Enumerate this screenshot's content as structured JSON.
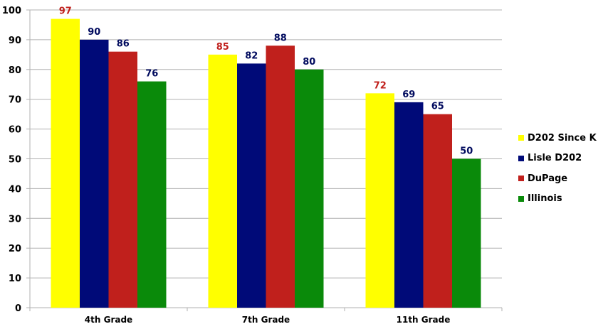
{
  "chart_data": {
    "type": "bar",
    "categories": [
      "4th Grade",
      "7th Grade",
      "11th Grade"
    ],
    "series": [
      {
        "name": "D202 Since K",
        "color": "#ffff00",
        "label_color": "#c0201c",
        "values": [
          97,
          85,
          72
        ]
      },
      {
        "name": "Lisle D202",
        "color": "#000a78",
        "label_color": "#000a5e",
        "values": [
          90,
          82,
          69
        ]
      },
      {
        "name": "DuPage",
        "color": "#c0201c",
        "label_color": "#000a5e",
        "values": [
          86,
          88,
          65
        ]
      },
      {
        "name": "Illinois",
        "color": "#0a8a0a",
        "label_color": "#000a5e",
        "values": [
          76,
          80,
          50
        ]
      }
    ],
    "yticks": [
      0,
      10,
      20,
      30,
      40,
      50,
      60,
      70,
      80,
      90,
      100
    ],
    "ylim": [
      0,
      100
    ],
    "grid": true,
    "legend_position": "right",
    "title": "",
    "xlabel": "",
    "ylabel": ""
  }
}
